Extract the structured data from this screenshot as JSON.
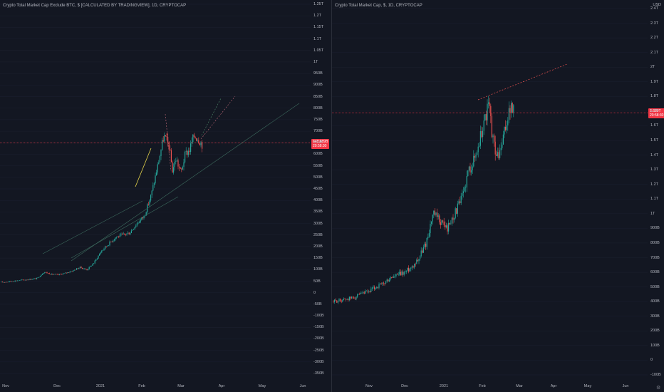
{
  "left": {
    "title": "Crypto Total Market Cap Exclude BTC, $ [CALCULATED BY TRADINGVIEW], 1D, CRYPTOCAP",
    "y_ticks": [
      "1.25T",
      "1.2T",
      "1.15T",
      "1.1T",
      "1.05T",
      "1T",
      "950B",
      "900B",
      "850B",
      "800B",
      "750B",
      "700B",
      "650B",
      "600B",
      "550B",
      "500B",
      "450B",
      "400B",
      "350B",
      "300B",
      "250B",
      "200B",
      "150B",
      "100B",
      "50B",
      "0",
      "-50B",
      "-100B",
      "-150B",
      "-200B",
      "-250B",
      "-300B",
      "-350B"
    ],
    "x_ticks": [
      "Nov",
      "Dec",
      "2021",
      "Feb",
      "Mar",
      "Apr",
      "May",
      "Jun"
    ],
    "price_tag": {
      "value": "648.689B",
      "time": "20:58:30"
    },
    "colors": {
      "tag": "#f23645",
      "up": "#26a69a",
      "down": "#ef5350"
    }
  },
  "right": {
    "title": "Crypto Total Market Cap, $, 1D, CRYPTOCAP",
    "currency": "USD",
    "y_ticks": [
      "2.4T",
      "2.3T",
      "2.2T",
      "2.1T",
      "2T",
      "1.9T",
      "1.8T",
      "1.7T",
      "1.6T",
      "1.5T",
      "1.4T",
      "1.3T",
      "1.2T",
      "1.1T",
      "1T",
      "900B",
      "800B",
      "700B",
      "600B",
      "500B",
      "400B",
      "300B",
      "200B",
      "100B",
      "0",
      "-100B"
    ],
    "x_ticks": [
      "Nov",
      "Dec",
      "2021",
      "Feb",
      "Mar",
      "Apr",
      "May",
      "Jun"
    ],
    "price_tag": {
      "value": "1.689T",
      "time": "20:58:30"
    }
  },
  "chart_data": [
    {
      "type": "candlestick",
      "title": "Crypto Total Market Cap Exclude BTC, $ [CALCULATED BY TRADINGVIEW], 1D, CRYPTOCAP",
      "ylim": [
        -350,
        1250
      ],
      "y_unit": "B USD",
      "series": [
        {
          "points": [
            [
              0,
              45
            ],
            [
              10,
              48
            ],
            [
              20,
              52
            ],
            [
              30,
              55
            ],
            [
              40,
              58
            ],
            [
              50,
              62
            ],
            [
              60,
              90
            ],
            [
              70,
              80
            ],
            [
              80,
              78
            ],
            [
              90,
              85
            ],
            [
              100,
              95
            ],
            [
              110,
              110
            ],
            [
              120,
              100
            ],
            [
              130,
              130
            ],
            [
              140,
              180
            ],
            [
              150,
              210
            ],
            [
              160,
              240
            ],
            [
              170,
              250
            ],
            [
              180,
              260
            ],
            [
              190,
              300
            ],
            [
              200,
              330
            ],
            [
              210,
              420
            ],
            [
              220,
              560
            ],
            [
              228,
              680
            ],
            [
              235,
              640
            ],
            [
              240,
              530
            ],
            [
              245,
              580
            ],
            [
              252,
              520
            ],
            [
              258,
              600
            ],
            [
              264,
              620
            ],
            [
              270,
              680
            ],
            [
              276,
              670
            ],
            [
              282,
              640
            ]
          ]
        }
      ],
      "current_value": "648.689B"
    },
    {
      "type": "candlestick",
      "title": "Crypto Total Market Cap, $, 1D, CRYPTOCAP",
      "ylim": [
        -100,
        2400
      ],
      "y_unit": "B USD",
      "series": [
        {
          "points": [
            [
              0,
              400
            ],
            [
              10,
              410
            ],
            [
              20,
              420
            ],
            [
              30,
              430
            ],
            [
              40,
              450
            ],
            [
              50,
              470
            ],
            [
              60,
              500
            ],
            [
              70,
              520
            ],
            [
              80,
              560
            ],
            [
              90,
              580
            ],
            [
              100,
              600
            ],
            [
              110,
              640
            ],
            [
              120,
              700
            ],
            [
              130,
              800
            ],
            [
              140,
              1000
            ],
            [
              150,
              950
            ],
            [
              160,
              900
            ],
            [
              170,
              1000
            ],
            [
              180,
              1100
            ],
            [
              190,
              1300
            ],
            [
              200,
              1400
            ],
            [
              210,
              1600
            ],
            [
              218,
              1750
            ],
            [
              224,
              1500
            ],
            [
              230,
              1380
            ],
            [
              236,
              1450
            ],
            [
              242,
              1600
            ],
            [
              248,
              1720
            ],
            [
              254,
              1700
            ]
          ]
        }
      ],
      "current_value": "1.689T"
    }
  ]
}
